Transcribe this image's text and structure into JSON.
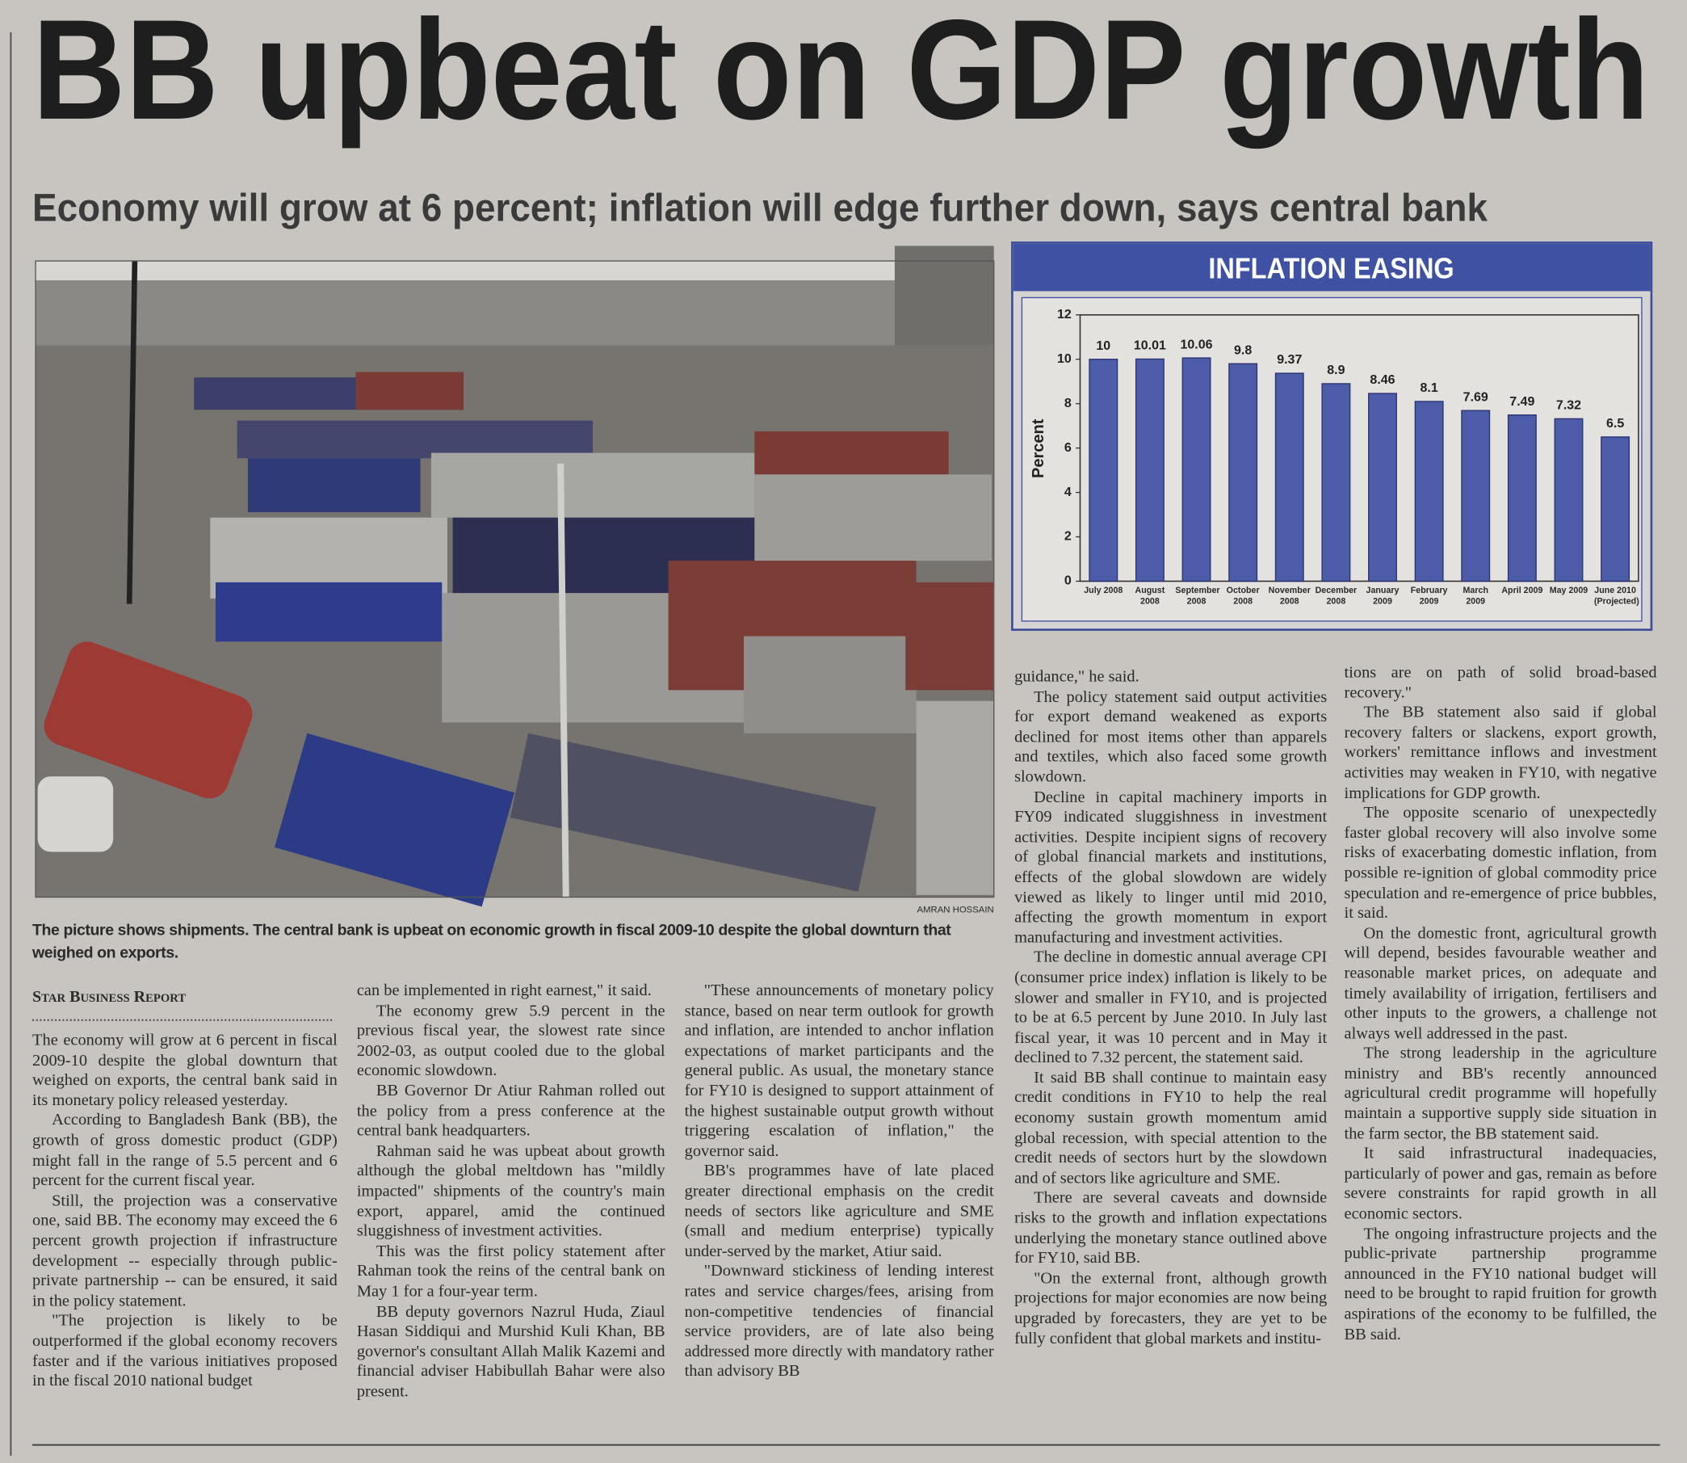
{
  "headline": "BB upbeat on GDP growth",
  "subheadline": "Economy will grow at 6 percent; inflation will edge further down, says central bank",
  "photo": {
    "credit": "AMRAN HOSSAIN",
    "caption": "The picture shows shipments. The central bank is upbeat on economic growth in fiscal 2009-10 despite the global downturn that weighed on exports."
  },
  "chart_data": {
    "type": "bar",
    "title": "INFLATION EASING",
    "y_label": "Percent",
    "categories": [
      "July 2008",
      "August 2008",
      "September 2008",
      "October 2008",
      "November 2008",
      "December 2008",
      "January 2009",
      "February 2009",
      "March 2009",
      "April 2009",
      "May 2009",
      "June 2010 (Projected)"
    ],
    "values": [
      10,
      10.01,
      10.06,
      9.8,
      9.37,
      8.9,
      8.46,
      8.1,
      7.69,
      7.49,
      7.32,
      6.5
    ],
    "color": "#4c5ca8",
    "ylim": [
      0,
      12
    ],
    "yticks": [
      0,
      2,
      4,
      6,
      8,
      10,
      12
    ]
  },
  "article": {
    "byline": "Star Business Report",
    "columns": [
      [
        "The economy will grow at 6 percent in fiscal 2009-10 despite the global downturn that weighed on exports, the central bank said in its monetary policy released yesterday.",
        "According to Bangladesh Bank (BB), the growth of gross domestic product (GDP) might fall in the range of 5.5 percent and 6 percent for the current fiscal year.",
        "Still, the projection was a conservative one, said BB. The economy may exceed the 6 percent growth projection if infrastructure development -- especially through public-private partnership -- can be ensured, it said in the policy statement.",
        "\"The projection is likely to be outperformed if the global economy recovers faster and if the various initiatives proposed in the fiscal 2010 national budget"
      ],
      [
        "can be implemented in right earnest,\" it said.",
        "The economy grew 5.9 percent in the previous fiscal year, the slowest rate since 2002-03, as output cooled due to the global economic slowdown.",
        "BB Governor Dr Atiur Rahman rolled out the policy from a press conference at the central bank headquarters.",
        "Rahman said he was upbeat about growth although the global meltdown has \"mildly impacted\" shipments of the country's main export, apparel, amid the continued sluggishness of investment activities.",
        "This was the first policy statement after Rahman took the reins of the central bank on May 1 for a four-year term.",
        "BB deputy governors Nazrul Huda, Ziaul Hasan Siddiqui and Murshid Kuli Khan, BB governor's consultant Allah Malik Kazemi and financial adviser Habibullah Bahar were also present."
      ],
      [
        "\"These announcements of monetary policy stance, based on near term outlook for growth and inflation, are intended to anchor inflation expectations of market participants and the general public. As usual, the monetary stance for FY10 is designed to support attainment of the highest sustainable output growth without triggering escalation of inflation,\" the governor said.",
        "BB's programmes have of late placed greater directional emphasis on the credit needs of sectors like agriculture and SME (small and medium enterprise) typically under-served by the market, Atiur said.",
        "\"Downward stickiness of lending interest rates and service charges/fees, arising from non-competitive tendencies of financial service providers, are of late also being addressed more directly with mandatory rather than advisory BB"
      ],
      [
        "guidance,\" he said.",
        "The policy statement said output activities for export demand weakened as exports declined for most items other than apparels and textiles, which also faced some growth slowdown.",
        "Decline in capital machinery imports in FY09 indicated sluggishness in investment activities. Despite incipient signs of recovery of global financial markets and institutions, effects of the global slowdown are widely viewed as likely to linger until mid 2010, affecting the growth momentum in export manufacturing and investment activities.",
        "The decline in domestic annual average CPI (consumer price index) inflation is likely to be slower and smaller in FY10, and is projected to be at 6.5 percent by June 2010. In July last fiscal year, it was 10 percent and in May it declined to 7.32 percent, the statement said.",
        "It said BB shall continue to maintain easy credit conditions in FY10 to help the real economy sustain growth momentum amid global recession, with special attention to the credit needs of sectors hurt by the slowdown and of sectors like agriculture and SME.",
        "There are several caveats and downside risks to the growth and inflation expectations underlying the monetary stance outlined above for FY10, said BB.",
        "\"On the external front, although growth projections for major economies are now being upgraded by forecasters, they are yet to be fully confident that global markets and institu-"
      ],
      [
        "tions are on path of solid broad-based recovery.\"",
        "The BB statement also said if global recovery falters or slackens, export growth, workers' remittance inflows and investment activities may weaken in FY10, with negative implications for GDP growth.",
        "The opposite scenario of unexpectedly faster global recovery will also involve some risks of exacerbating domestic inflation, from possible re-ignition of global commodity price speculation and re-emergence of price bubbles, it said.",
        "On the domestic front, agricultural growth will depend, besides favourable weather and reasonable market prices, on adequate and timely availability of irrigation, fertilisers and other inputs to the growers, a challenge not always well addressed in the past.",
        "The strong leadership in the agriculture ministry and BB's recently announced agricultural credit programme will hopefully maintain a supportive supply side situation in the farm sector, the BB statement said.",
        "It said infrastructural inadequacies, particularly of power and gas, remain as before severe constraints for rapid growth in all economic sectors.",
        "The ongoing infrastructure projects and the public-private partnership programme announced in the FY10 national budget will need to be brought to rapid fruition for growth aspirations of the economy to be fulfilled, the BB said."
      ]
    ]
  }
}
